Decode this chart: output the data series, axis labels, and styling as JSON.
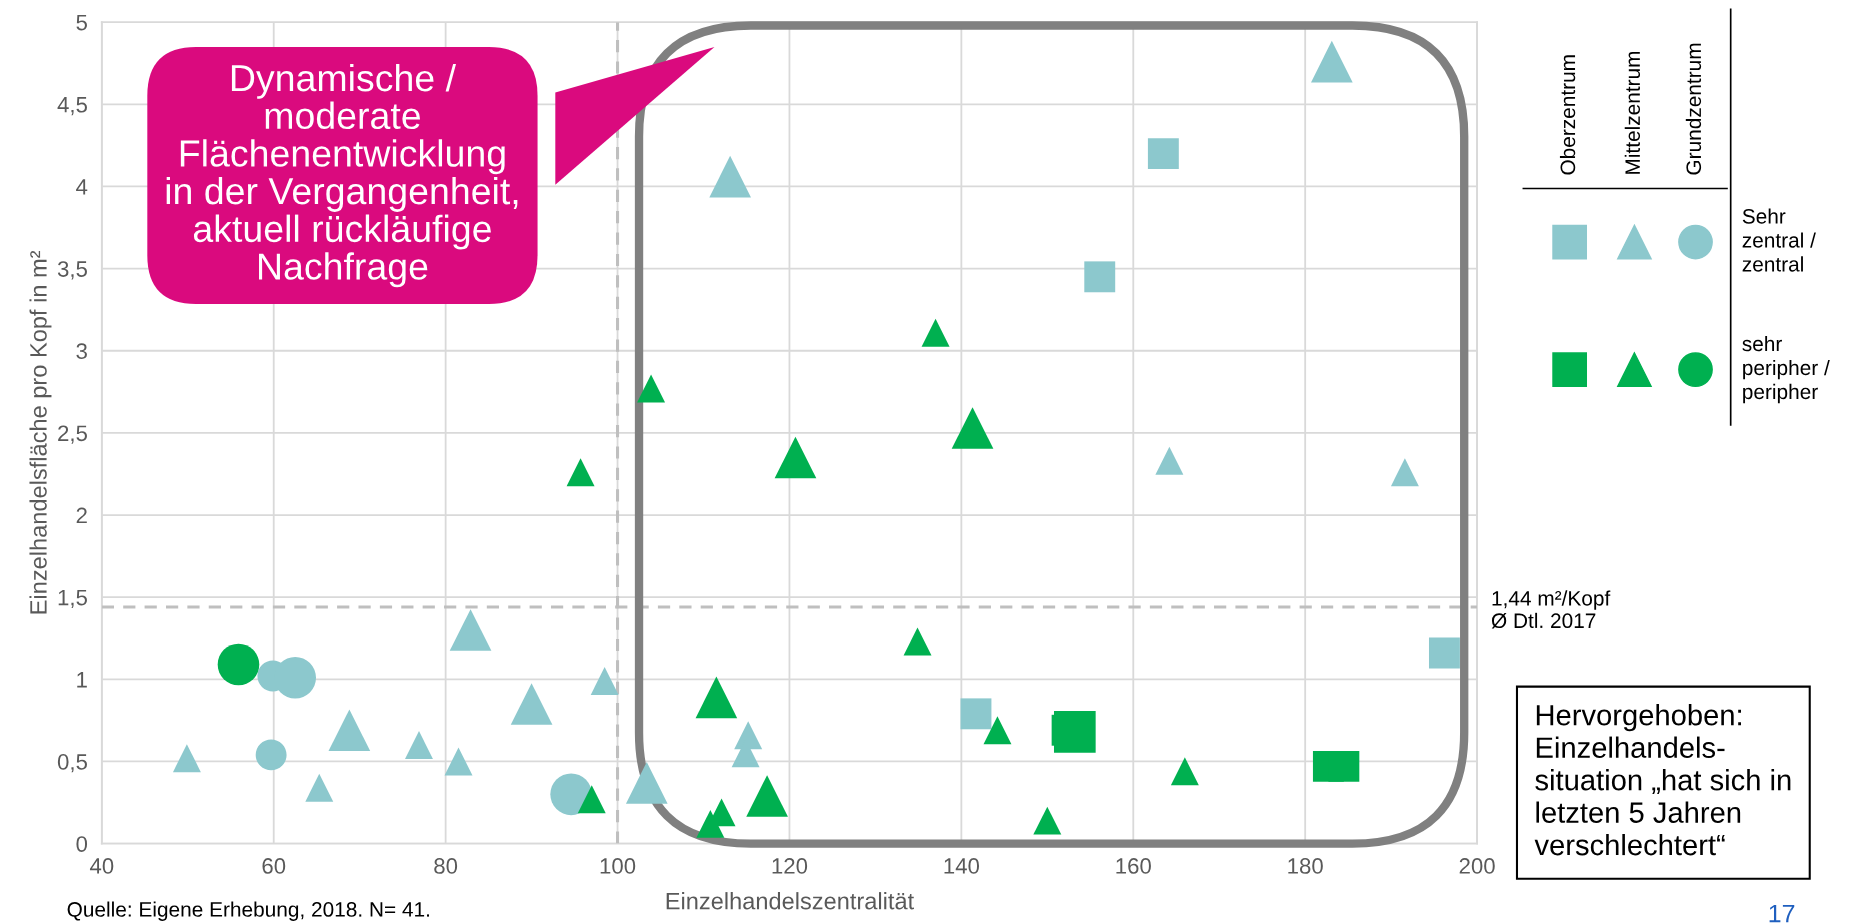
{
  "chart_data": {
    "type": "bubble",
    "xlabel": "Einzelhandelszentralität",
    "ylabel": "Einzelhandelsfläche pro Kopf in m²",
    "xlim": [
      40,
      200
    ],
    "xticks": [
      40,
      60,
      80,
      100,
      120,
      140,
      160,
      180,
      200
    ],
    "ylim": [
      0,
      5
    ],
    "yticks": [
      0,
      {
        "value": 0.5,
        "label": "0,5"
      },
      1,
      {
        "value": 1.5,
        "label": "1,5"
      },
      2,
      {
        "value": 2.5,
        "label": "2,5"
      },
      3,
      {
        "value": 3.5,
        "label": "3,5"
      },
      4,
      {
        "value": 4.5,
        "label": "4,5"
      },
      5
    ],
    "grid": true,
    "legend": false,
    "series": [
      {
        "color": "#8cc8cd",
        "marker": "square",
        "x": [
          163.5,
          156.1,
          196.2,
          141.7
        ],
        "values": [
          4.2,
          3.45,
          1.16,
          0.79
        ],
        "sizes": [
          0.55,
          0.55,
          0.55,
          0.55
        ]
      },
      {
        "color": "#8cc8cd",
        "marker": "triangle",
        "x": [
          49.9,
          65.3,
          76.9,
          81.5,
          98.5,
          115.2,
          114.9,
          164.2,
          191.6,
          113.1,
          183.1,
          82.9,
          90.0,
          68.8,
          103.4
        ],
        "values": [
          0.52,
          0.34,
          0.6,
          0.5,
          0.99,
          0.66,
          0.55,
          2.33,
          2.26,
          4.06,
          4.76,
          1.3,
          0.85,
          0.69,
          0.37
        ],
        "sizes": [
          0.225,
          0.225,
          0.225,
          0.225,
          0.225,
          0.225,
          0.225,
          0.225,
          0.225,
          0.5,
          0.5,
          0.5,
          0.5,
          0.5,
          0.5
        ]
      },
      {
        "color": "#8cc8cd",
        "marker": "circle",
        "x": [
          59.7,
          59.9,
          62.5,
          94.6
        ],
        "values": [
          0.54,
          1.02,
          1.01,
          0.3
        ],
        "sizes": [
          0.43,
          0.43,
          0.78,
          0.78
        ]
      },
      {
        "color": "#00b050",
        "marker": "square",
        "x": [
          152.3,
          153.2,
          182.7,
          184.5
        ],
        "values": [
          0.69,
          0.68,
          0.47,
          0.47
        ],
        "sizes": [
          0.55,
          1,
          0.55,
          0.55
        ]
      },
      {
        "color": "#00b050",
        "marker": "triangle",
        "x": [
          95.7,
          97.0,
          110.8,
          112.1,
          134.9,
          103.9,
          137.0,
          144.2,
          166.0,
          150.0,
          120.7,
          111.5,
          117.4,
          141.3
        ],
        "values": [
          2.26,
          0.27,
          0.12,
          0.19,
          1.23,
          2.77,
          3.11,
          0.69,
          0.44,
          0.14,
          2.35,
          0.89,
          0.29,
          2.53
        ],
        "sizes": [
          0.225,
          0.225,
          0.225,
          0.225,
          0.225,
          0.225,
          0.225,
          0.225,
          0.225,
          0.225,
          0.5,
          0.5,
          0.5,
          0.5
        ]
      },
      {
        "color": "#00b050",
        "marker": "circle",
        "x": [
          55.9
        ],
        "values": [
          1.09
        ],
        "sizes": [
          0.78
        ]
      }
    ],
    "ref_lines": [
      {
        "axis": "x",
        "value": 100,
        "color": "#bfbfbf",
        "line_style": "dashed"
      },
      {
        "axis": "y",
        "value": 1.44,
        "label": "1,44 m²/Kopf\nØ Dtl. 2017",
        "color": "#bfbfbf",
        "line_style": "dashed"
      }
    ],
    "annotations": [
      "Oberzentrum",
      "Mittelzentrum",
      "Grundzentrum",
      "Sehr\nzentral /\nzentral",
      "sehr\nperipher /\nperipher",
      "Dynamische /\nmoderate\nFlächenentwicklung\nin der Vergangenheit,\naktuell rückläufige\nNachfrage",
      "Hervorgehoben:\nEinzelhandels-\nsituation „hat sich in\nletzten 5 Jahren\nverschlechtert“",
      "Quelle: Eigene Erhebung, 2018. N= 41.",
      "17"
    ]
  }
}
